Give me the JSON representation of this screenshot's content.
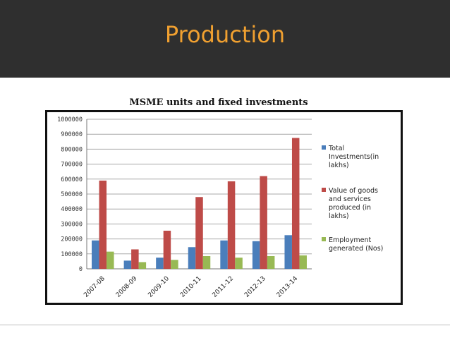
{
  "slide": {
    "title": "Production"
  },
  "chart_data": {
    "type": "bar",
    "title": "MSME units and fixed investments",
    "xlabel": "",
    "ylabel": "",
    "ylim": [
      0,
      1000000
    ],
    "yticks": [
      "0",
      "100000",
      "200000",
      "300000",
      "400000",
      "500000",
      "600000",
      "700000",
      "800000",
      "900000",
      "1000000"
    ],
    "grid": true,
    "legend_position": "right",
    "categories": [
      "2007-08",
      "2008-09",
      "2009-10",
      "2010-11",
      "2011-12",
      "2012-13",
      "2013-14"
    ],
    "series": [
      {
        "name": "Total Investments(in lakhs)",
        "color": "#4a7ebb",
        "values": [
          190000,
          55000,
          75000,
          145000,
          190000,
          185000,
          225000
        ]
      },
      {
        "name": "Value of goods and services produced (in lakhs)",
        "color": "#be4b48",
        "values": [
          590000,
          130000,
          255000,
          480000,
          585000,
          620000,
          875000
        ]
      },
      {
        "name": "Employment generated (Nos)",
        "color": "#98b954",
        "values": [
          115000,
          45000,
          60000,
          85000,
          75000,
          85000,
          90000
        ]
      }
    ]
  }
}
